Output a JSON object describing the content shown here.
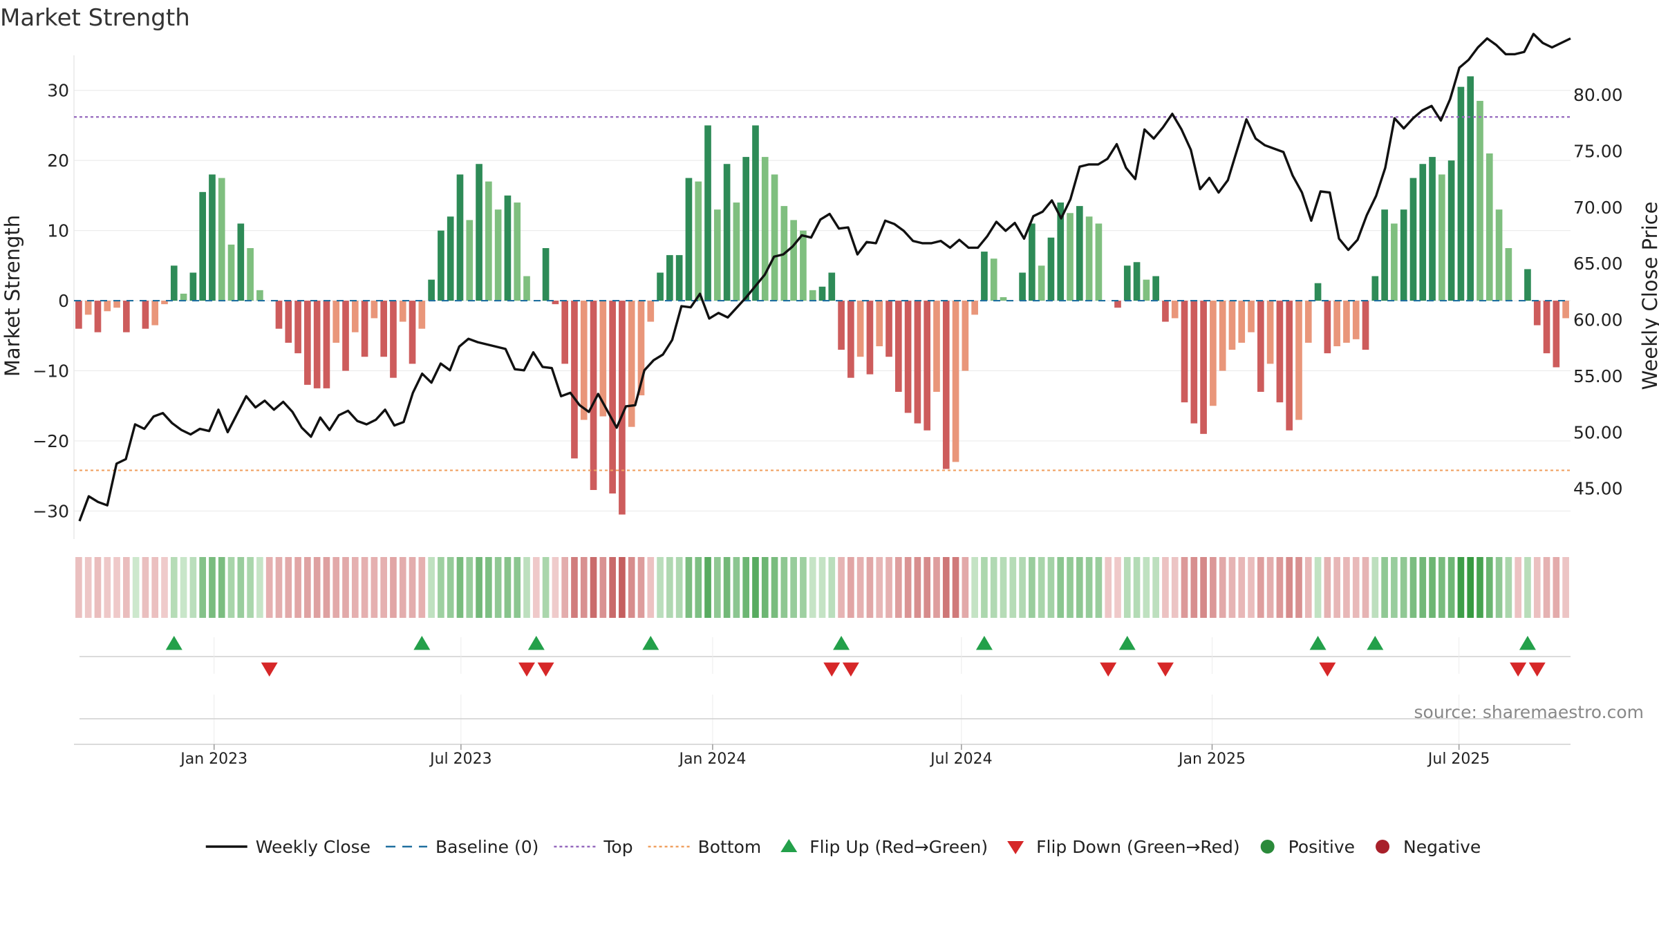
{
  "chart_data": {
    "type": "bar",
    "title": "Market Strength",
    "ylabel": "Market Strength",
    "y2label": "Weekly Close Price",
    "ylim": [
      -34,
      35
    ],
    "y2lim": [
      40.5,
      83.5
    ],
    "yticks": [
      30,
      20,
      10,
      0,
      -10,
      -20,
      -30
    ],
    "y2ticks": [
      "80.00",
      "75.00",
      "70.00",
      "65.00",
      "60.00",
      "55.00",
      "50.00",
      "45.00"
    ],
    "x_range_weeks": [
      0,
      157
    ],
    "x_ticks": [
      {
        "label": "Jan 2023",
        "week": 14.7
      },
      {
        "label": "Jul 2023",
        "week": 40.6
      },
      {
        "label": "Jan 2024",
        "week": 67
      },
      {
        "label": "Jul 2024",
        "week": 93.1
      },
      {
        "label": "Jan 2025",
        "week": 119.4
      },
      {
        "label": "Jul 2025",
        "week": 145.3
      }
    ],
    "top_line": 26.2,
    "bottom_line": -24.2,
    "baseline": 0,
    "strength": [
      -4,
      -2,
      -4.5,
      -1.5,
      -1,
      -4.5,
      0,
      -4,
      -3.5,
      -0.5,
      5,
      1,
      4,
      15.5,
      18,
      17.5,
      8,
      11,
      7.5,
      1.5,
      0,
      -4,
      -6,
      -7.5,
      -12,
      -12.5,
      -12.5,
      -6,
      -10,
      -4.5,
      -8,
      -2.5,
      -8,
      -11,
      -3,
      -9,
      -4,
      3,
      10,
      12,
      18,
      11.5,
      19.5,
      17,
      13,
      15,
      14,
      3.5,
      0,
      7.5,
      -0.5,
      -9,
      -22.5,
      -17,
      -27,
      -16.5,
      -27.5,
      -30.5,
      -18,
      -13.5,
      -3,
      4,
      6.5,
      6.5,
      17.5,
      17,
      25,
      13,
      19.5,
      14,
      20.5,
      25,
      20.5,
      18,
      13.5,
      11.5,
      10,
      1.5,
      2,
      4,
      -7,
      -11,
      -8,
      -10.5,
      -6.5,
      -8,
      -13,
      -16,
      -17.5,
      -18.5,
      -13,
      -24,
      -23,
      -10,
      -2,
      7,
      6,
      0.5,
      0,
      4,
      11,
      5,
      9,
      14,
      12.5,
      13.5,
      12,
      11,
      0,
      -1,
      5,
      5.5,
      3,
      3.5,
      -3,
      -2.5,
      -14.5,
      -17.5,
      -19,
      -15,
      -10,
      -7,
      -6,
      -4.5,
      -13,
      -9,
      -14.5,
      -18.5,
      -17,
      -6,
      2.5,
      -7.5,
      -6.5,
      -6,
      -5.5,
      -7,
      3.5,
      13,
      11,
      13,
      17.5,
      19.5,
      20.5,
      18,
      20,
      30.5,
      32,
      28.5,
      21,
      13,
      7.5,
      0,
      4.5,
      -3.5,
      -7.5,
      -9.5,
      -2.5
    ],
    "close": [
      42.1,
      44.3,
      43.8,
      43.5,
      47.2,
      47.6,
      50.7,
      50.3,
      51.4,
      51.7,
      50.8,
      50.2,
      49.8,
      50.3,
      50.1,
      52,
      50,
      51.6,
      53.2,
      52.2,
      52.8,
      52,
      52.7,
      51.8,
      50.4,
      49.6,
      51.3,
      50.2,
      51.5,
      51.9,
      51,
      50.7,
      51.1,
      52,
      50.6,
      50.9,
      53.5,
      55.2,
      54.4,
      56.1,
      55.5,
      57.6,
      58.3,
      58,
      57.8,
      57.6,
      57.4,
      55.6,
      55.5,
      57.1,
      55.8,
      55.7,
      53.2,
      53.5,
      52.4,
      51.8,
      53.4,
      51.9,
      50.4,
      52.3,
      52.4,
      55.5,
      56.4,
      56.9,
      58.2,
      61.2,
      61.1,
      62.3,
      60.1,
      60.6,
      60.2,
      61.1,
      62,
      63,
      64,
      65.6,
      65.8,
      66.5,
      67.5,
      67.3,
      68.9,
      69.4,
      68.1,
      68.2,
      65.8,
      66.9,
      66.8,
      68.8,
      68.5,
      67.9,
      67,
      66.8,
      66.8,
      67,
      66.4,
      67.1,
      66.4,
      66.4,
      67.4,
      68.7,
      67.9,
      68.6,
      67.2,
      69.2,
      69.6,
      70.6,
      69,
      70.7,
      73.6,
      73.8,
      73.8,
      74.3,
      75.6,
      73.5,
      72.5,
      76.9,
      76.1,
      77.1,
      78.3,
      76.9,
      75.1,
      71.6,
      72.6,
      71.3,
      72.4,
      75.1,
      77.8,
      76.1,
      75.5,
      75.2,
      74.9,
      72.8,
      71.3,
      68.8,
      71.4,
      71.3,
      67.2,
      66.2,
      67.1,
      69.3,
      71,
      73.5,
      77.9,
      77,
      77.9,
      78.6,
      79,
      77.7,
      79.6,
      82.4,
      83.1,
      84.2,
      85,
      84.4,
      83.6,
      83.6,
      83.8,
      85.4,
      84.6,
      84.2,
      84.6,
      85
    ],
    "ribbon_strength": [
      -4,
      -2,
      -4.5,
      -1.5,
      -1,
      -4.5,
      0,
      -4,
      -3.5,
      -0.5,
      5,
      1,
      4,
      15.5,
      18,
      17.5,
      8,
      11,
      7.5,
      1.5,
      -8,
      -9,
      -10,
      -11,
      -12,
      -12.5,
      -12.5,
      -10,
      -10,
      -8,
      -8,
      -8,
      -8,
      -11,
      -9,
      -9,
      -8,
      3,
      10,
      12,
      18,
      11.5,
      19.5,
      17,
      13,
      15,
      14,
      3.5,
      -1,
      7.5,
      -0.5,
      -9,
      -22.5,
      -17,
      -27,
      -16.5,
      -27.5,
      -30.5,
      -18,
      -13.5,
      -3,
      4,
      6.5,
      6.5,
      17.5,
      17,
      25,
      13,
      19.5,
      14,
      20.5,
      25,
      20.5,
      18,
      13.5,
      11.5,
      10,
      1.5,
      2,
      4,
      -7,
      -11,
      -8,
      -10.5,
      -6.5,
      -8,
      -13,
      -16,
      -17.5,
      -18.5,
      -13,
      -24,
      -23,
      -10,
      2,
      7,
      6,
      5,
      5,
      6,
      11,
      8,
      9,
      14,
      12.5,
      13.5,
      12,
      11,
      -2,
      -1,
      5,
      5.5,
      3,
      3.5,
      -3,
      -2.5,
      -14.5,
      -17.5,
      -19,
      -15,
      -10,
      -7,
      -6,
      -4.5,
      -13,
      -9,
      -14.5,
      -18.5,
      -17,
      -6,
      2.5,
      -7.5,
      -6.5,
      -6,
      -5.5,
      -7,
      3.5,
      13,
      11,
      13,
      17.5,
      19.5,
      20.5,
      18,
      20,
      30.5,
      32,
      28.5,
      21,
      13,
      7.5,
      -3,
      4.5,
      -3.5,
      -7.5,
      -9.5,
      -2.5
    ],
    "flips_up_weeks": [
      10,
      36,
      48,
      60,
      80,
      95,
      110,
      130,
      136,
      152
    ],
    "flips_down_weeks": [
      20,
      47,
      49,
      79,
      81,
      108,
      114,
      131,
      151,
      153
    ],
    "source": "source: sharemaestro.com",
    "legend": [
      {
        "label": "Weekly Close",
        "kind": "line",
        "color": "#111111"
      },
      {
        "label": "Baseline (0)",
        "kind": "dash",
        "color": "#1f6f9f"
      },
      {
        "label": "Top",
        "kind": "dot",
        "color": "#9467bd"
      },
      {
        "label": "Bottom",
        "kind": "dot",
        "color": "#f0a060"
      },
      {
        "label": "Flip Up (Red→Green)",
        "kind": "tri-up",
        "color": "#23a04a"
      },
      {
        "label": "Flip Down (Green→Red)",
        "kind": "tri-down",
        "color": "#d62728"
      },
      {
        "label": "Positive",
        "kind": "circle",
        "color": "#2a8a3a"
      },
      {
        "label": "Negative",
        "kind": "circle",
        "color": "#a8202a"
      }
    ],
    "colors": {
      "pos_strong": "#2e8b57",
      "pos_light": "#7fbf7f",
      "neg_strong": "#cd5c5c",
      "neg_light": "#e9967a",
      "grid": "#e8e8e8",
      "axis": "#cfcfcf",
      "text": "#222222",
      "source": "#888888"
    }
  }
}
